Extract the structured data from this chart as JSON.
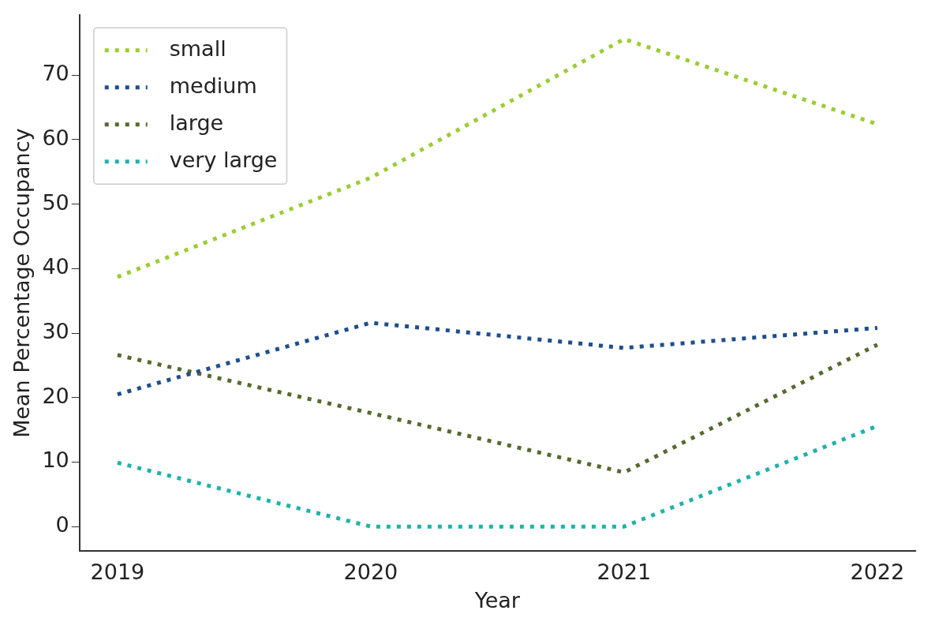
{
  "chart_data": {
    "type": "line",
    "xlabel": "Year",
    "ylabel": "Mean Percentage Occupancy",
    "x": [
      2019,
      2020,
      2021,
      2022
    ],
    "series": [
      {
        "name": "small",
        "color": "#9acd32",
        "values": [
          38.7,
          54.1,
          75.6,
          62.4
        ]
      },
      {
        "name": "medium",
        "color": "#1f4e8c",
        "values": [
          20.5,
          31.6,
          27.7,
          30.8
        ]
      },
      {
        "name": "large",
        "color": "#556b2f",
        "values": [
          26.6,
          17.6,
          8.4,
          28.2
        ]
      },
      {
        "name": "very large",
        "color": "#20b2aa",
        "values": [
          9.9,
          0,
          0,
          15.6
        ]
      }
    ],
    "xlim": [
      2018.85,
      2022.15
    ],
    "xticks": [
      2019,
      2020,
      2021,
      2022
    ],
    "ylim": [
      -3.8,
      79.3
    ],
    "yticks": [
      0,
      10,
      20,
      30,
      40,
      50,
      60,
      70
    ],
    "legend": "top left",
    "line_style": "dotted",
    "marker": "none",
    "grid": false
  }
}
